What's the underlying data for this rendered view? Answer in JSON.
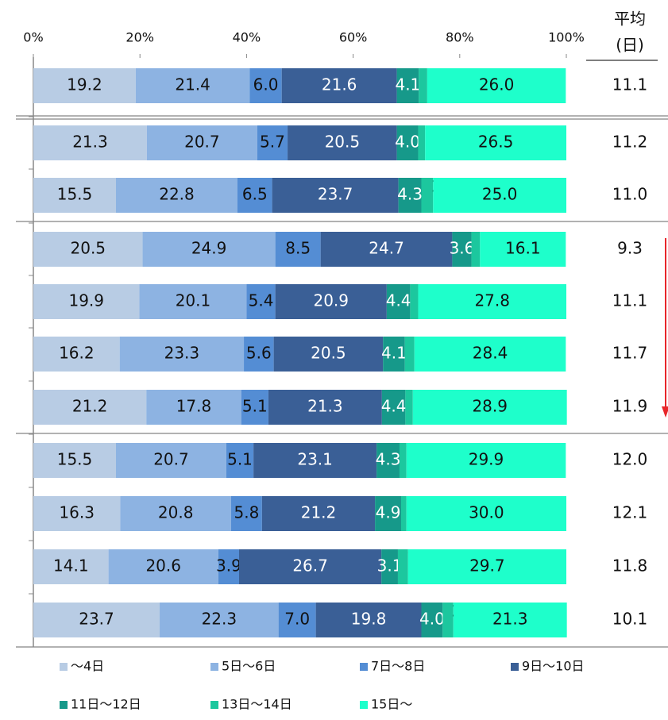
{
  "chart_data": {
    "type": "stacked_bar_horizontal",
    "categories": [
      null,
      null,
      null,
      null,
      null,
      null,
      null,
      null,
      null,
      null,
      null
    ],
    "xlim": [
      0,
      100
    ],
    "xticks": [
      {
        "value": 0,
        "label": "0%"
      },
      {
        "value": 20,
        "label": "20%"
      },
      {
        "value": 40,
        "label": "40%"
      },
      {
        "value": 60,
        "label": "60%"
      },
      {
        "value": 80,
        "label": "80%"
      },
      {
        "value": 100,
        "label": "100%"
      }
    ],
    "series": [
      {
        "name": "～4日",
        "color": "#b8cce4",
        "values": [
          19.2,
          21.3,
          15.5,
          20.5,
          19.9,
          16.2,
          21.2,
          15.5,
          16.3,
          14.1,
          23.7
        ],
        "value_labels": [
          "19.2",
          "21.3",
          "15.5",
          "20.5",
          "19.9",
          "16.2",
          "21.2",
          "15.5",
          "16.3",
          "14.1",
          "23.7"
        ]
      },
      {
        "name": "5日～6日",
        "color": "#8db3e2",
        "values": [
          21.4,
          20.7,
          22.8,
          24.9,
          20.1,
          23.3,
          17.8,
          20.7,
          20.8,
          20.6,
          22.3
        ],
        "value_labels": [
          "21.4",
          "20.7",
          "22.8",
          "24.9",
          "20.1",
          "23.3",
          "17.8",
          "20.7",
          "20.8",
          "20.6",
          "22.3"
        ]
      },
      {
        "name": "7日～8日",
        "color": "#548dd4",
        "values": [
          6.0,
          5.7,
          6.5,
          8.5,
          5.4,
          5.6,
          5.1,
          5.1,
          5.8,
          3.9,
          7.0
        ],
        "value_labels": [
          "6.0",
          "5.7",
          "6.5",
          "8.5",
          "5.4",
          "5.6",
          "5.1",
          "5.1",
          "5.8",
          "3.9",
          "7.0"
        ]
      },
      {
        "name": "9日～10日",
        "color": "#3a5f96",
        "values": [
          21.6,
          20.5,
          23.7,
          24.7,
          20.9,
          20.5,
          21.3,
          23.1,
          21.2,
          26.7,
          19.8
        ],
        "value_labels": [
          "21.6",
          "20.5",
          "23.7",
          "24.7",
          "20.9",
          "20.5",
          "21.3",
          "23.1",
          "21.2",
          "26.7",
          "19.8"
        ]
      },
      {
        "name": "11日～12日",
        "color": "#16998a",
        "values": [
          4.1,
          4.0,
          4.3,
          3.6,
          4.4,
          4.1,
          4.4,
          4.3,
          4.9,
          3.1,
          4.0
        ],
        "value_labels": [
          "4.1",
          "4.0",
          "4.3",
          "3.6",
          "4.4",
          "4.1",
          "4.4",
          "4.3",
          "4.9",
          "3.1",
          "4.0"
        ]
      },
      {
        "name": "13日～14日",
        "color": "#1cc79e",
        "values": [
          1.6,
          1.3,
          2.2,
          1.6,
          1.5,
          1.8,
          1.4,
          1.3,
          1.0,
          1.9,
          2.0
        ],
        "value_labels": [
          "1.6",
          "1.3",
          "2.2",
          "1.6",
          "1.5",
          "1.8",
          "1.4",
          "1.3",
          "1.0",
          "1.9",
          "2.0"
        ]
      },
      {
        "name": "15日～",
        "color": "#1effcb",
        "values": [
          26.0,
          26.5,
          25.0,
          16.1,
          27.8,
          28.4,
          28.9,
          29.9,
          30.0,
          29.7,
          21.3
        ],
        "value_labels": [
          "26.0",
          "26.5",
          "25.0",
          "16.1",
          "27.8",
          "28.4",
          "28.9",
          "29.9",
          "30.0",
          "29.7",
          "21.3"
        ]
      }
    ],
    "average_header": [
      "平均",
      "(日)"
    ],
    "averages": [
      11.1,
      11.2,
      11.0,
      9.3,
      11.1,
      11.7,
      11.9,
      12.0,
      12.1,
      11.8,
      10.1
    ],
    "average_labels": [
      "11.1",
      "11.2",
      "11.0",
      "9.3",
      "11.1",
      "11.7",
      "11.9",
      "12.0",
      "12.1",
      "11.8",
      "10.1"
    ],
    "legend": "bottom"
  }
}
